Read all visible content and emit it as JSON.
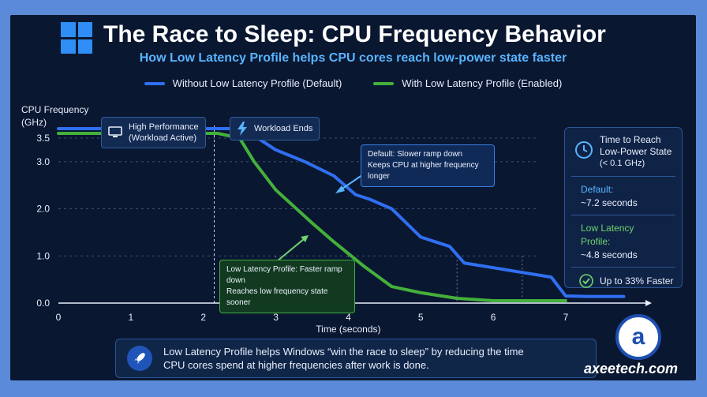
{
  "title": "The Race to Sleep: CPU Frequency Behavior",
  "subtitle": "How Low Latency Profile helps CPU cores reach low-power state faster",
  "brand": "axeetech.com",
  "brand_mark": "a",
  "colors": {
    "blue": "#2f6ff2",
    "green": "#44b03c",
    "accent": "#58b4ff",
    "background": "#0a1730"
  },
  "chips": {
    "high_perf_line1": "High Performance",
    "high_perf_line2": "(Workload Active)",
    "high_perf_icon": "monitor-icon",
    "workload_ends": "Workload Ends",
    "workload_ends_icon": "lightning-icon"
  },
  "callouts": {
    "default_line1": "Default: Slower ramp down",
    "default_line2": "Keeps CPU at higher frequency longer",
    "lowlat_line1": "Low Latency Profile: Faster ramp down",
    "lowlat_line2": "Reaches low frequency state sooner"
  },
  "side_panel": {
    "heading_line1": "Time to Reach",
    "heading_line2": "Low-Power State",
    "heading_line3": "(< 0.1 GHz)",
    "default_label": "Default:",
    "default_value": "~7.2 seconds",
    "lowlat_label_line1": "Low Latency",
    "lowlat_label_line2": "Profile:",
    "lowlat_value": "~4.8 seconds",
    "footer": "Up to 33% Faster",
    "clock_icon": "clock-icon",
    "check_icon": "check-circle-icon"
  },
  "bottom_note": {
    "line1": "Low Latency Profile helps Windows “win the race to sleep” by reducing the time",
    "line2": "CPU cores spend at higher frequencies after work is done.",
    "icon": "rocket-icon"
  },
  "chart_data": {
    "type": "line",
    "xlabel": "Time (seconds)",
    "ylabel_line1": "CPU Frequency",
    "ylabel_line2": "(GHz)",
    "xlim": [
      0,
      8.1
    ],
    "ylim": [
      0,
      3.6
    ],
    "x_ticks": [
      0,
      1,
      2,
      3,
      4,
      5,
      6,
      7
    ],
    "y_ticks": [
      0.0,
      1.0,
      2.0,
      3.0,
      3.5
    ],
    "y_tick_labels": [
      "0.0",
      "1.0",
      "2.0",
      "3.0",
      "3.5"
    ],
    "grid": "horizontal dashed",
    "legend_position": "top-center",
    "series": [
      {
        "name": "Without Low Latency Profile (Default)",
        "color": "#2f6ff2",
        "x": [
          0,
          2.5,
          2.75,
          3.0,
          3.4,
          3.8,
          4.1,
          4.3,
          4.6,
          5.0,
          5.4,
          5.6,
          6.0,
          6.4,
          6.8,
          7.0,
          7.3,
          7.8
        ],
        "y": [
          3.7,
          3.7,
          3.5,
          3.25,
          3.0,
          2.7,
          2.3,
          2.2,
          2.0,
          1.4,
          1.2,
          0.85,
          0.75,
          0.65,
          0.55,
          0.15,
          0.14,
          0.14
        ]
      },
      {
        "name": "With Low Latency Profile (Enabled)",
        "color": "#44b03c",
        "x": [
          0,
          2.2,
          2.5,
          2.7,
          3.0,
          3.5,
          3.8,
          4.2,
          4.6,
          5.0,
          5.5,
          6.0,
          7.0
        ],
        "y": [
          3.6,
          3.6,
          3.5,
          3.0,
          2.4,
          1.7,
          1.3,
          0.8,
          0.35,
          0.22,
          0.1,
          0.05,
          0.05
        ]
      }
    ],
    "markers": [
      {
        "kind": "workload-ends",
        "x": 2.15
      },
      {
        "kind": "lowlat-reach",
        "x": 4.8
      },
      {
        "kind": "default-reach",
        "x": 7.2
      }
    ],
    "guides": [
      3.0,
      4.0,
      5.5,
      6.4
    ]
  }
}
